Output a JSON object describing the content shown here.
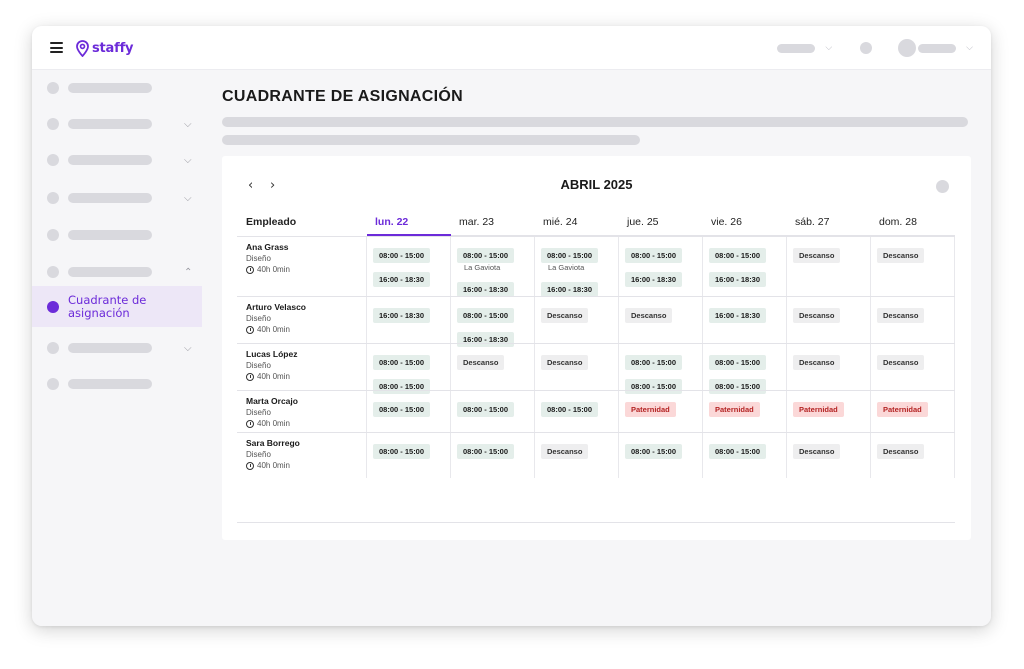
{
  "app": {
    "logo_text": "staffy",
    "brand_color": "#6c2bd9"
  },
  "topbar": {
    "right_icons": [
      "chevron-down-icon",
      "chevron-down-icon"
    ]
  },
  "sidebar": {
    "active_item": {
      "label_line1": "Cuadrante de",
      "label_line2": "asignación"
    }
  },
  "page": {
    "title": "CUADRANTE DE ASIGNACIÓN"
  },
  "calendar": {
    "prev": "‹",
    "next": "›",
    "month": "ABRIL 2025",
    "employee_header": "Empleado",
    "days": [
      "lun. 22",
      "mar. 23",
      "mié. 24",
      "jue. 25",
      "vie. 26",
      "sáb. 27",
      "dom. 28"
    ],
    "selected_day_index": 0,
    "rows": [
      {
        "name": "Ana Grass",
        "dept": "Diseño",
        "hours": "40h 0min",
        "cells": [
          [
            {
              "t": "08:00 - 15:00",
              "k": "shift"
            },
            {
              "t": "16:00 - 18:30",
              "k": "shift"
            }
          ],
          [
            {
              "t": "08:00 - 15:00",
              "k": "shift",
              "loc": "La Gaviota"
            },
            {
              "t": "16:00 - 18:30",
              "k": "shift"
            }
          ],
          [
            {
              "t": "08:00 - 15:00",
              "k": "shift",
              "loc": "La Gaviota"
            },
            {
              "t": "16:00 - 18:30",
              "k": "shift"
            }
          ],
          [
            {
              "t": "08:00 - 15:00",
              "k": "shift"
            },
            {
              "t": "16:00 - 18:30",
              "k": "shift"
            }
          ],
          [
            {
              "t": "08:00 - 15:00",
              "k": "shift"
            },
            {
              "t": "16:00 - 18:30",
              "k": "shift"
            }
          ],
          [
            {
              "t": "Descanso",
              "k": "rest"
            }
          ],
          [
            {
              "t": "Descanso",
              "k": "rest"
            }
          ]
        ]
      },
      {
        "name": "Arturo Velasco",
        "dept": "Diseño",
        "hours": "40h 0min",
        "cells": [
          [
            {
              "t": "16:00 - 18:30",
              "k": "shift"
            }
          ],
          [
            {
              "t": "08:00 - 15:00",
              "k": "shift"
            },
            {
              "t": "16:00 - 18:30",
              "k": "shift"
            }
          ],
          [
            {
              "t": "Descanso",
              "k": "rest"
            }
          ],
          [
            {
              "t": "Descanso",
              "k": "rest"
            }
          ],
          [
            {
              "t": "16:00 - 18:30",
              "k": "shift"
            }
          ],
          [
            {
              "t": "Descanso",
              "k": "rest"
            }
          ],
          [
            {
              "t": "Descanso",
              "k": "rest"
            }
          ]
        ]
      },
      {
        "name": "Lucas López",
        "dept": "Diseño",
        "hours": "40h 0min",
        "cells": [
          [
            {
              "t": "08:00 - 15:00",
              "k": "shift"
            },
            {
              "t": "08:00 - 15:00",
              "k": "shift"
            }
          ],
          [
            {
              "t": "Descanso",
              "k": "rest"
            }
          ],
          [
            {
              "t": "Descanso",
              "k": "rest"
            }
          ],
          [
            {
              "t": "08:00 - 15:00",
              "k": "shift"
            },
            {
              "t": "08:00 - 15:00",
              "k": "shift"
            }
          ],
          [
            {
              "t": "08:00 - 15:00",
              "k": "shift"
            },
            {
              "t": "08:00 - 15:00",
              "k": "shift"
            }
          ],
          [
            {
              "t": "Descanso",
              "k": "rest"
            }
          ],
          [
            {
              "t": "Descanso",
              "k": "rest"
            }
          ]
        ]
      },
      {
        "name": "Marta Orcajo",
        "dept": "Diseño",
        "hours": "40h 0min",
        "cells": [
          [
            {
              "t": "08:00 - 15:00",
              "k": "shift"
            }
          ],
          [
            {
              "t": "08:00 - 15:00",
              "k": "shift"
            }
          ],
          [
            {
              "t": "08:00 - 15:00",
              "k": "shift"
            }
          ],
          [
            {
              "t": "Paternidad",
              "k": "pat"
            }
          ],
          [
            {
              "t": "Paternidad",
              "k": "pat"
            }
          ],
          [
            {
              "t": "Paternidad",
              "k": "pat"
            }
          ],
          [
            {
              "t": "Paternidad",
              "k": "pat"
            }
          ]
        ]
      },
      {
        "name": "Sara Borrego",
        "dept": "Diseño",
        "hours": "40h 0min",
        "cells": [
          [
            {
              "t": "08:00 - 15:00",
              "k": "shift"
            }
          ],
          [
            {
              "t": "08:00 - 15:00",
              "k": "shift"
            }
          ],
          [
            {
              "t": "Descanso",
              "k": "rest"
            }
          ],
          [
            {
              "t": "08:00 - 15:00",
              "k": "shift"
            }
          ],
          [
            {
              "t": "08:00 - 15:00",
              "k": "shift"
            }
          ],
          [
            {
              "t": "Descanso",
              "k": "rest"
            }
          ],
          [
            {
              "t": "Descanso",
              "k": "rest"
            }
          ]
        ]
      }
    ]
  }
}
